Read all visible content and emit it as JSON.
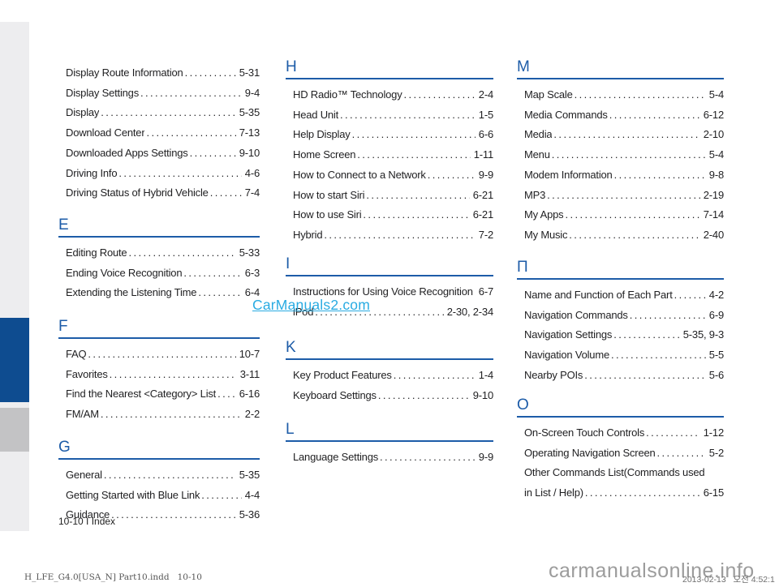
{
  "colors": {
    "section_blue": "#1d5ca8",
    "sidebar_blue": "#0e4c90",
    "sidebar_gray": "#c3c3c5",
    "sidebar_light": "#ededef",
    "watermark_cyan": "#29abe2",
    "watermark_gray": "#9c9c9c",
    "text": "#1f1f21"
  },
  "watermarks": {
    "center": "CarManuals2.com",
    "bottom": "carmanualsonline.info",
    "timestamp": "2013-02-13   오전 4:52:1"
  },
  "footer": {
    "page_label": "10-10 I Index",
    "print_line": "H_LFE_G4.0[USA_N] Part10.indd   10-10"
  },
  "index_columns": [
    {
      "id": "col1",
      "sections": [
        {
          "letter": "",
          "pos": "c1-d",
          "entries": [
            {
              "text": "Display Route Information",
              "page": "5-31"
            },
            {
              "text": "Display Settings",
              "page": "9-4"
            },
            {
              "text": "Display",
              "page": "5-35"
            },
            {
              "text": "Download Center",
              "page": "7-13"
            },
            {
              "text": "Downloaded Apps Settings",
              "page": "9-10"
            },
            {
              "text": "Driving Info",
              "page": "4-6"
            },
            {
              "text": "Driving Status of Hybrid Vehicle",
              "page": "7-4"
            }
          ]
        },
        {
          "letter": "E",
          "pos": "c1-e",
          "entries": [
            {
              "text": "Editing Route",
              "page": "5-33"
            },
            {
              "text": "Ending Voice Recognition",
              "page": "6-3"
            },
            {
              "text": "Extending the Listening Time",
              "page": "6-4"
            }
          ]
        },
        {
          "letter": "F",
          "pos": "c1-f",
          "entries": [
            {
              "text": "FAQ",
              "page": "10-7"
            },
            {
              "text": "Favorites",
              "page": "3-11"
            },
            {
              "text": "Find the Nearest <Category> List",
              "page": "6-16"
            },
            {
              "text": "FM/AM",
              "page": "2-2"
            }
          ]
        },
        {
          "letter": "G",
          "pos": "c1-g",
          "entries": [
            {
              "text": "General",
              "page": "5-35"
            },
            {
              "text": "Getting Started with Blue Link",
              "page": "4-4"
            },
            {
              "text": "Guidance",
              "page": "5-36"
            }
          ]
        }
      ]
    },
    {
      "id": "col2",
      "sections": [
        {
          "letter": "H",
          "pos": "c2-h",
          "entries": [
            {
              "text": "HD Radio™ Technology",
              "page": "2-4"
            },
            {
              "text": "Head Unit",
              "page": "1-5"
            },
            {
              "text": "Help Display",
              "page": "6-6"
            },
            {
              "text": "Home Screen",
              "page": "1-11"
            },
            {
              "text": "How to Connect to a Network",
              "page": "9-9"
            },
            {
              "text": "How to start Siri",
              "page": "6-21"
            },
            {
              "text": "How to use Siri",
              "page": "6-21"
            },
            {
              "text": "Hybrid",
              "page": "7-2"
            }
          ]
        },
        {
          "letter": "I",
          "pos": "c2-i",
          "entries": [
            {
              "text": "Instructions for Using Voice Recognition",
              "page": "6-7",
              "nodots": true
            },
            {
              "text": "iPod",
              "page": "2-30, 2-34"
            }
          ]
        },
        {
          "letter": "K",
          "pos": "c2-k",
          "entries": [
            {
              "text": "Key Product Features",
              "page": "1-4"
            },
            {
              "text": "Keyboard Settings",
              "page": "9-10"
            }
          ]
        },
        {
          "letter": "L",
          "pos": "c2-l",
          "entries": [
            {
              "text": "Language Settings",
              "page": "9-9"
            }
          ]
        }
      ]
    },
    {
      "id": "col3",
      "sections": [
        {
          "letter": "M",
          "pos": "c3-m",
          "entries": [
            {
              "text": "Map Scale",
              "page": "5-4"
            },
            {
              "text": "Media Commands",
              "page": "6-12"
            },
            {
              "text": "Media",
              "page": "2-10"
            },
            {
              "text": "Menu",
              "page": "5-4"
            },
            {
              "text": "Modem Information",
              "page": "9-8"
            },
            {
              "text": "MP3",
              "page": "2-19"
            },
            {
              "text": "My Apps",
              "page": "7-14"
            },
            {
              "text": "My Music",
              "page": "2-40"
            }
          ]
        },
        {
          "letter": "П",
          "pos": "c3-n",
          "entries": [
            {
              "text": "Name and Function of Each Part",
              "page": "4-2"
            },
            {
              "text": "Navigation Commands",
              "page": "6-9"
            },
            {
              "text": "Navigation Settings",
              "page": "5-35, 9-3"
            },
            {
              "text": "Navigation Volume",
              "page": "5-5"
            },
            {
              "text": "Nearby POIs",
              "page": "5-6"
            }
          ]
        },
        {
          "letter": "O",
          "pos": "c3-o",
          "entries": [
            {
              "text": "On-Screen Touch Controls",
              "page": "1-12"
            },
            {
              "text": "Operating Navigation Screen",
              "page": "5-2"
            },
            {
              "text": "Other Commands List(Commands used",
              "page": ""
            },
            {
              "text": "in List / Help)",
              "page": "6-15"
            }
          ]
        }
      ]
    }
  ]
}
